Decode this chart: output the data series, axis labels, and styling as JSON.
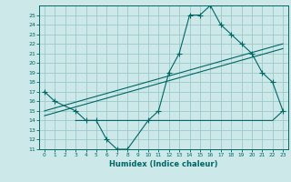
{
  "xlabel": "Humidex (Indice chaleur)",
  "xlim": [
    -0.5,
    23.5
  ],
  "ylim": [
    11,
    26
  ],
  "xticks": [
    0,
    1,
    2,
    3,
    4,
    5,
    6,
    7,
    8,
    9,
    10,
    11,
    12,
    13,
    14,
    15,
    16,
    17,
    18,
    19,
    20,
    21,
    22,
    23
  ],
  "yticks": [
    11,
    12,
    13,
    14,
    15,
    16,
    17,
    18,
    19,
    20,
    21,
    22,
    23,
    24,
    25
  ],
  "bg_color": "#cce8e8",
  "grid_color": "#9dc8c8",
  "line_color": "#006666",
  "line1_x": [
    0,
    1,
    3,
    4,
    5,
    6,
    7,
    8,
    10,
    11,
    12,
    13,
    14,
    15,
    16,
    17,
    18,
    19,
    20,
    21,
    22,
    23
  ],
  "line1_y": [
    17,
    16,
    15,
    14,
    14,
    12,
    11,
    11,
    14,
    15,
    19,
    21,
    25,
    25,
    26,
    24,
    23,
    22,
    21,
    19,
    18,
    15
  ],
  "line2_x": [
    0,
    23
  ],
  "line2_y": [
    15,
    22
  ],
  "line3_x": [
    0,
    23
  ],
  "line3_y": [
    14.5,
    21.5
  ],
  "line4_x": [
    3,
    4,
    5,
    6,
    10,
    15,
    19,
    21,
    22,
    23
  ],
  "line4_y": [
    14,
    14,
    14,
    14,
    14,
    14,
    14,
    14,
    14,
    15
  ]
}
